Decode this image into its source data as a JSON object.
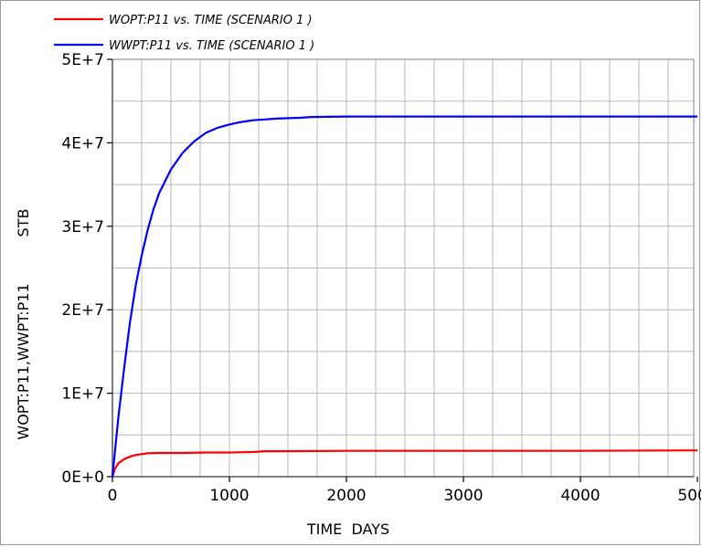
{
  "chart_data": {
    "type": "line",
    "xlabel": "TIME  DAYS",
    "ylabel": "WOPT:P11,WWPT:P11",
    "yunit": "STB",
    "xlim": [
      0,
      5000
    ],
    "ylim": [
      0,
      50000000
    ],
    "xticks": [
      0,
      1000,
      2000,
      3000,
      4000,
      5000
    ],
    "xtick_labels": [
      "0",
      "1000",
      "2000",
      "3000",
      "4000",
      "5000"
    ],
    "yticks": [
      0,
      10000000,
      20000000,
      30000000,
      40000000,
      50000000
    ],
    "ytick_labels": [
      "0E+0",
      "1E+7",
      "2E+7",
      "3E+7",
      "4E+7",
      "5E+7"
    ],
    "grid": true,
    "legend_position": "top-left",
    "series": [
      {
        "name": "WOPT:P11  vs.  TIME (SCENARIO 1 )",
        "color": "#ff0000",
        "x": [
          0,
          20,
          50,
          100,
          150,
          200,
          250,
          300,
          400,
          600,
          800,
          1000,
          1200,
          1250,
          1300,
          1500,
          2000,
          3000,
          4000,
          5000
        ],
        "y": [
          0,
          900000,
          1600000,
          2100000,
          2400000,
          2600000,
          2700000,
          2800000,
          2850000,
          2850000,
          2900000,
          2900000,
          2950000,
          3000000,
          3050000,
          3050000,
          3100000,
          3100000,
          3100000,
          3150000
        ]
      },
      {
        "name": "WWPT:P11  vs.  TIME (SCENARIO 1 )",
        "color": "#0000ff",
        "x": [
          0,
          25,
          50,
          100,
          150,
          200,
          250,
          300,
          350,
          400,
          500,
          600,
          700,
          800,
          900,
          1000,
          1100,
          1200,
          1300,
          1400,
          1500,
          1600,
          1700,
          2000,
          2500,
          3000,
          4000,
          5000
        ],
        "y": [
          0,
          3500000,
          7000000,
          13000000,
          18500000,
          23000000,
          26500000,
          29500000,
          32000000,
          34000000,
          36800000,
          38800000,
          40200000,
          41200000,
          41800000,
          42200000,
          42500000,
          42700000,
          42800000,
          42900000,
          42950000,
          43000000,
          43100000,
          43150000,
          43150000,
          43150000,
          43150000,
          43150000
        ]
      }
    ]
  }
}
